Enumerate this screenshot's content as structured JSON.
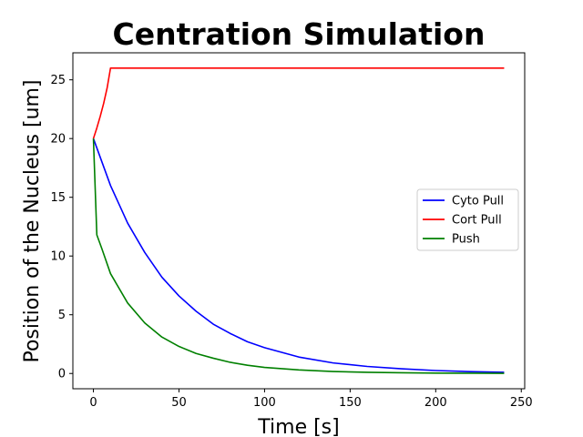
{
  "chart_data": {
    "type": "line",
    "title": "Centration Simulation",
    "xlabel": "Time [s]",
    "ylabel": "Position of the Nucleus [um]",
    "xlim": [
      -12,
      252
    ],
    "ylim": [
      -1.3,
      27.3
    ],
    "xticks": [
      0,
      50,
      100,
      150,
      200,
      250
    ],
    "yticks": [
      0,
      5,
      10,
      15,
      20,
      25
    ],
    "grid": false,
    "legend_position": "center-right",
    "series": [
      {
        "name": "Cyto Pull",
        "color": "#0000ff",
        "x": [
          0,
          10,
          20,
          30,
          40,
          50,
          60,
          70,
          80,
          90,
          100,
          120,
          140,
          160,
          180,
          200,
          220,
          240
        ],
        "y": [
          20,
          16.0,
          12.8,
          10.3,
          8.2,
          6.6,
          5.3,
          4.2,
          3.4,
          2.7,
          2.2,
          1.4,
          0.9,
          0.6,
          0.4,
          0.25,
          0.16,
          0.1
        ]
      },
      {
        "name": "Cort Pull",
        "color": "#ff0000",
        "x": [
          0,
          2,
          4,
          6,
          8,
          10,
          240
        ],
        "y": [
          20,
          20.9,
          21.9,
          23.0,
          24.3,
          26,
          26
        ]
      },
      {
        "name": "Push",
        "color": "#008000",
        "x": [
          0,
          2,
          5,
          10,
          20,
          30,
          40,
          50,
          60,
          70,
          80,
          90,
          100,
          120,
          140,
          160,
          180,
          200,
          220,
          240
        ],
        "y": [
          20,
          11.8,
          10.6,
          8.5,
          6.0,
          4.3,
          3.1,
          2.3,
          1.7,
          1.3,
          0.95,
          0.7,
          0.52,
          0.3,
          0.17,
          0.1,
          0.06,
          0.03,
          0.02,
          0.01
        ]
      }
    ]
  }
}
